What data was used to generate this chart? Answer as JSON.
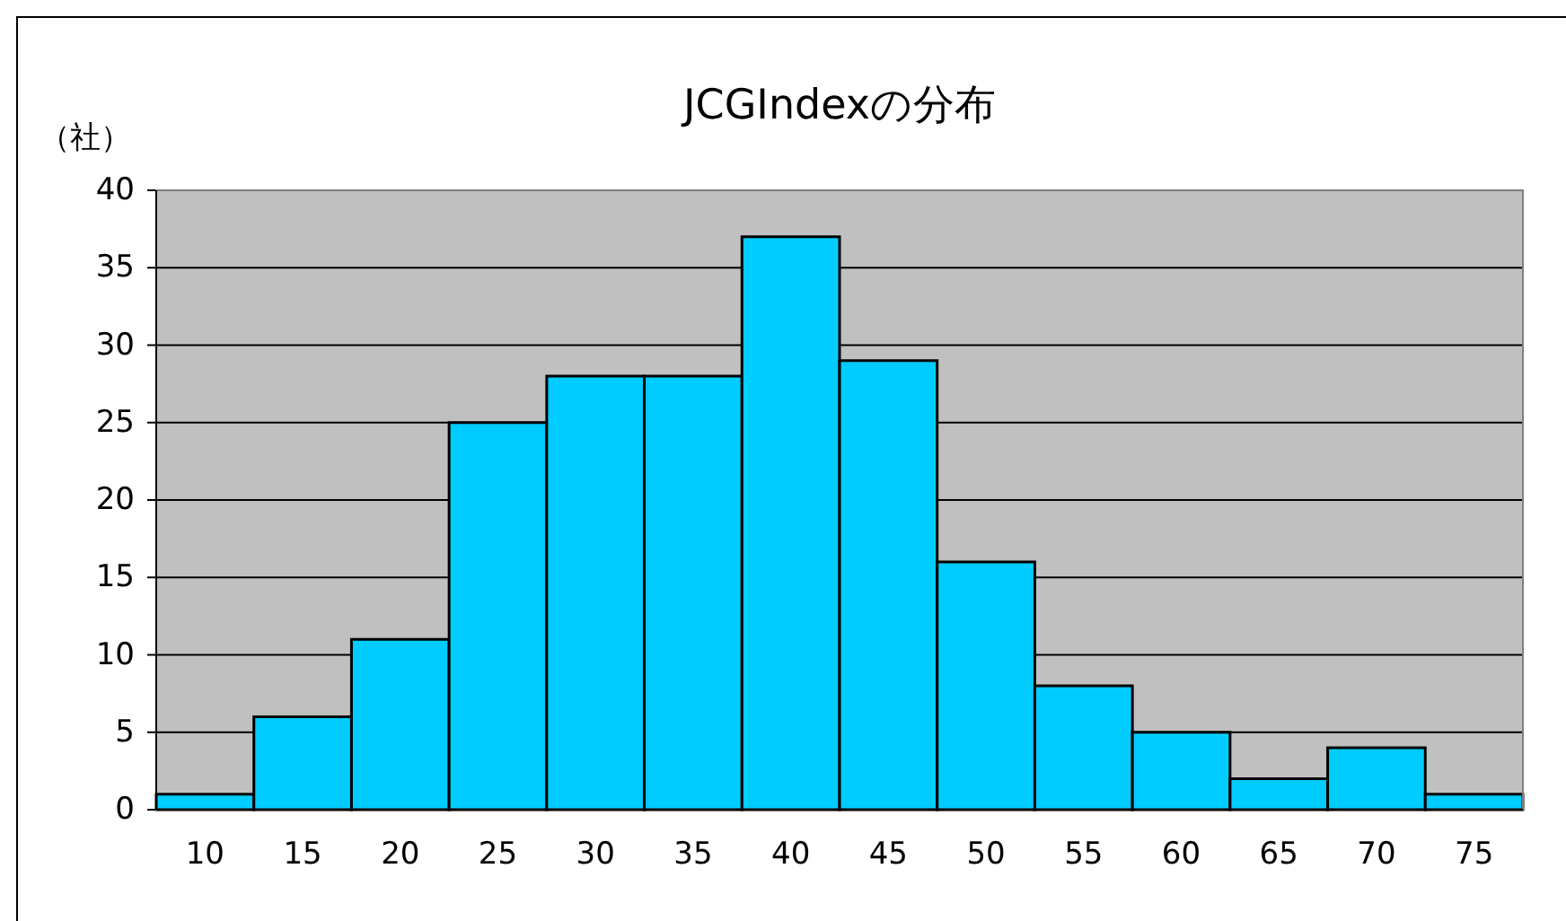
{
  "chart_data": {
    "type": "bar",
    "title": "JCGIndexの分布",
    "ylabel": "（社）",
    "categories": [
      "10",
      "15",
      "20",
      "25",
      "30",
      "35",
      "40",
      "45",
      "50",
      "55",
      "60",
      "65",
      "70",
      "75"
    ],
    "values": [
      1,
      6,
      11,
      25,
      28,
      28,
      37,
      29,
      16,
      8,
      5,
      2,
      4,
      1
    ],
    "color": "#00ccff",
    "ylim": [
      0,
      40
    ],
    "yticks": [
      0,
      5,
      10,
      15,
      20,
      25,
      30,
      35,
      40
    ],
    "grid": "y"
  }
}
